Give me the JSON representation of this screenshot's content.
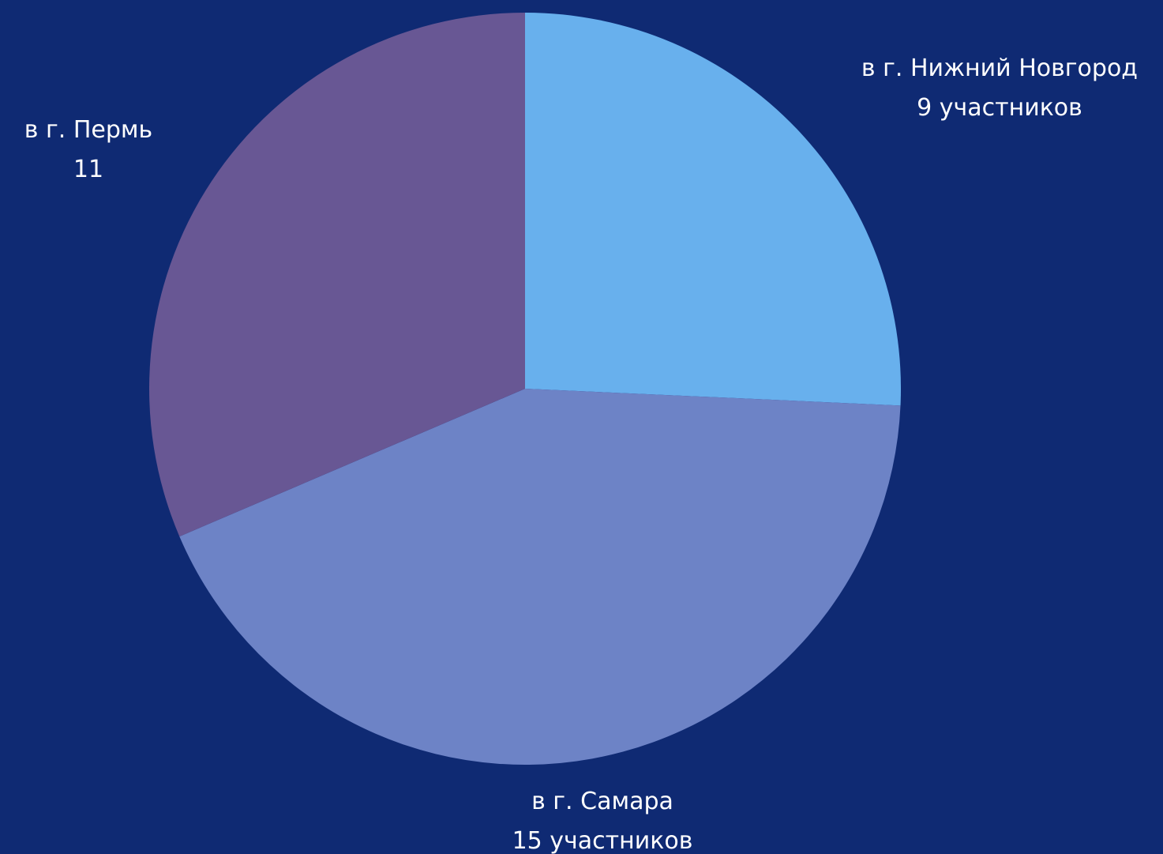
{
  "background_color": "#0f2a73",
  "chart_data": {
    "type": "pie",
    "title": "",
    "start_angle_deg": 0,
    "direction": "clockwise",
    "slices": [
      {
        "label": "в г. Нижний Новгород",
        "value": 9,
        "value_text": "9 участников",
        "color": "#68b0ed"
      },
      {
        "label": "в г. Самара",
        "value": 15,
        "value_text": "15 участников",
        "color": "#6d83c6"
      },
      {
        "label": "в г. Пермь",
        "value": 11,
        "value_text": "11",
        "color": "#685794"
      }
    ]
  }
}
